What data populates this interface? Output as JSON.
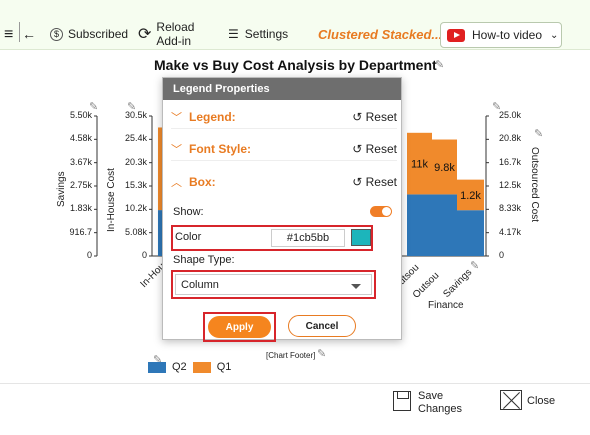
{
  "toolbar": {
    "subscribed": "Subscribed",
    "reload_line1": "Reload",
    "reload_line2": "Add-in",
    "settings": "Settings",
    "title": "Clustered Stacked...",
    "video": "How-to video"
  },
  "chart": {
    "title": "Make vs Buy Cost Analysis by Department",
    "left_axis1_title": "Savings",
    "left_axis1_ticks": [
      "5.50k",
      "4.58k",
      "3.67k",
      "2.75k",
      "1.83k",
      "916.7",
      "0"
    ],
    "left_axis2_title": "In-House Cost",
    "left_axis2_ticks": [
      "30.5k",
      "25.4k",
      "20.3k",
      "15.3k",
      "10.2k",
      "5.08k",
      "0"
    ],
    "right_axis_title": "Outsourced Cost",
    "right_axis_ticks": [
      "25.0k",
      "20.8k",
      "16.7k",
      "12.5k",
      "8.33k",
      "4.17k",
      "0"
    ],
    "x_labels": [
      "In-Hou",
      "Outsou",
      "Outsou",
      "Savings"
    ],
    "group_label": "Finance",
    "footer": "[Chart Footer]",
    "legend": [
      "Q2",
      "Q1"
    ],
    "colors": {
      "q2": "#2e77b8",
      "q1": "#f08a2c"
    }
  },
  "chart_data": {
    "type": "bar",
    "title": "Make vs Buy Cost Analysis by Department",
    "categories": [
      "In-House",
      "Outsourced",
      "Outsourced",
      "Savings"
    ],
    "series": [
      {
        "name": "Q2",
        "values": [
          10000,
          11000,
          11000,
          1800
        ]
      },
      {
        "name": "Q1",
        "values": [
          18000,
          11000,
          9800,
          1200
        ]
      }
    ],
    "data_labels": [
      "11k",
      "9.8k",
      "1.2k"
    ],
    "group": "Finance"
  },
  "dialog": {
    "title": "Legend Properties",
    "sections": [
      {
        "label": "Legend:",
        "state": "collapsed",
        "reset": "Reset"
      },
      {
        "label": "Font Style:",
        "state": "collapsed",
        "reset": "Reset"
      },
      {
        "label": "Box:",
        "state": "expanded",
        "reset": "Reset"
      }
    ],
    "show_label": "Show:",
    "show_value": true,
    "color_label": "Color",
    "color_value": "#1cb5bb",
    "shape_label": "Shape Type:",
    "shape_value": "Column",
    "apply": "Apply",
    "cancel": "Cancel"
  },
  "bottom": {
    "save_line1": "Save",
    "save_line2": "Changes",
    "close": "Close"
  }
}
